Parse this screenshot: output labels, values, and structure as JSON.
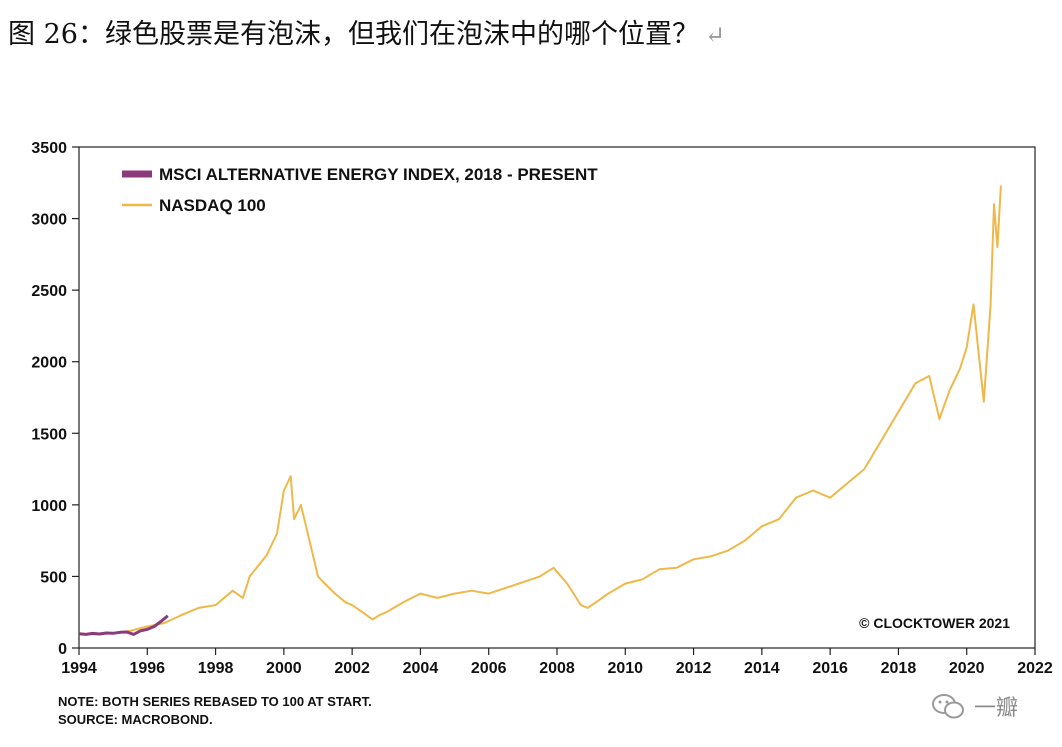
{
  "figure": {
    "caption": "图 26：绿色股票是有泡沫，但我们在泡沫中的哪个位置？",
    "return_mark": "↵"
  },
  "chart_data": {
    "type": "line",
    "title": "",
    "xlabel": "",
    "ylabel": "",
    "xlim": [
      1994,
      2022
    ],
    "ylim": [
      0,
      3500
    ],
    "x_ticks": [
      1994,
      1996,
      1998,
      2000,
      2002,
      2004,
      2006,
      2008,
      2010,
      2012,
      2014,
      2016,
      2018,
      2020,
      2022
    ],
    "x_tick_labels": [
      "1994",
      "1996",
      "1998",
      "2000",
      "2002",
      "2004",
      "2006",
      "2008",
      "2010",
      "2012",
      "2014",
      "2016",
      "2018",
      "2020",
      "2022"
    ],
    "y_ticks": [
      0,
      500,
      1000,
      1500,
      2000,
      2500,
      3000,
      3500
    ],
    "y_tick_labels": [
      "0",
      "500",
      "1000",
      "1500",
      "2000",
      "2500",
      "3000",
      "3500"
    ],
    "grid": false,
    "legend_position": "top-left",
    "credit": "© CLOCKTOWER 2021",
    "series": [
      {
        "name": "MSCI ALTERNATIVE ENERGY INDEX, 2018 - PRESENT",
        "color": "#8b3a7a",
        "x": [
          1994.0,
          1994.2,
          1994.4,
          1994.6,
          1994.8,
          1995.0,
          1995.2,
          1995.4,
          1995.6,
          1995.8,
          1996.0,
          1996.2,
          1996.4,
          1996.6
        ],
        "values": [
          100,
          95,
          102,
          98,
          105,
          103,
          110,
          112,
          95,
          120,
          130,
          150,
          185,
          225
        ]
      },
      {
        "name": "NASDAQ 100",
        "color": "#f0b84a",
        "x": [
          1994.0,
          1994.5,
          1995.0,
          1995.5,
          1996.0,
          1996.5,
          1997.0,
          1997.5,
          1998.0,
          1998.5,
          1998.8,
          1999.0,
          1999.5,
          1999.8,
          2000.0,
          2000.2,
          2000.3,
          2000.5,
          2000.8,
          2000.9,
          2001.0,
          2001.2,
          2001.5,
          2001.8,
          2002.0,
          2002.3,
          2002.6,
          2002.8,
          2003.0,
          2003.5,
          2004.0,
          2004.5,
          2005.0,
          2005.5,
          2006.0,
          2006.5,
          2007.0,
          2007.5,
          2007.9,
          2008.3,
          2008.7,
          2008.9,
          2009.2,
          2009.5,
          2010.0,
          2010.5,
          2011.0,
          2011.5,
          2012.0,
          2012.5,
          2013.0,
          2013.5,
          2014.0,
          2014.5,
          2015.0,
          2015.5,
          2016.0,
          2016.5,
          2017.0,
          2017.5,
          2018.0,
          2018.5,
          2018.9,
          2019.2,
          2019.5,
          2019.8,
          2020.0,
          2020.2,
          2020.5,
          2020.7,
          2020.8,
          2020.9,
          2021.0
        ],
        "values": [
          100,
          95,
          105,
          120,
          150,
          175,
          230,
          280,
          300,
          400,
          350,
          500,
          650,
          800,
          1100,
          1200,
          900,
          1000,
          700,
          600,
          500,
          450,
          380,
          320,
          300,
          250,
          200,
          230,
          250,
          320,
          380,
          350,
          380,
          400,
          380,
          420,
          460,
          500,
          560,
          450,
          300,
          280,
          330,
          380,
          450,
          480,
          550,
          560,
          620,
          640,
          680,
          750,
          850,
          900,
          1050,
          1100,
          1050,
          1150,
          1250,
          1450,
          1650,
          1850,
          1900,
          1600,
          1800,
          1950,
          2100,
          2400,
          1720,
          2400,
          3100,
          2800,
          3230
        ]
      }
    ]
  },
  "notes": {
    "line1": "NOTE: BOTH SERIES REBASED TO 100 AT START.",
    "line2": "SOURCE: MACROBOND."
  },
  "watermark": {
    "text": "一瓣",
    "icon": "wechat-icon"
  }
}
